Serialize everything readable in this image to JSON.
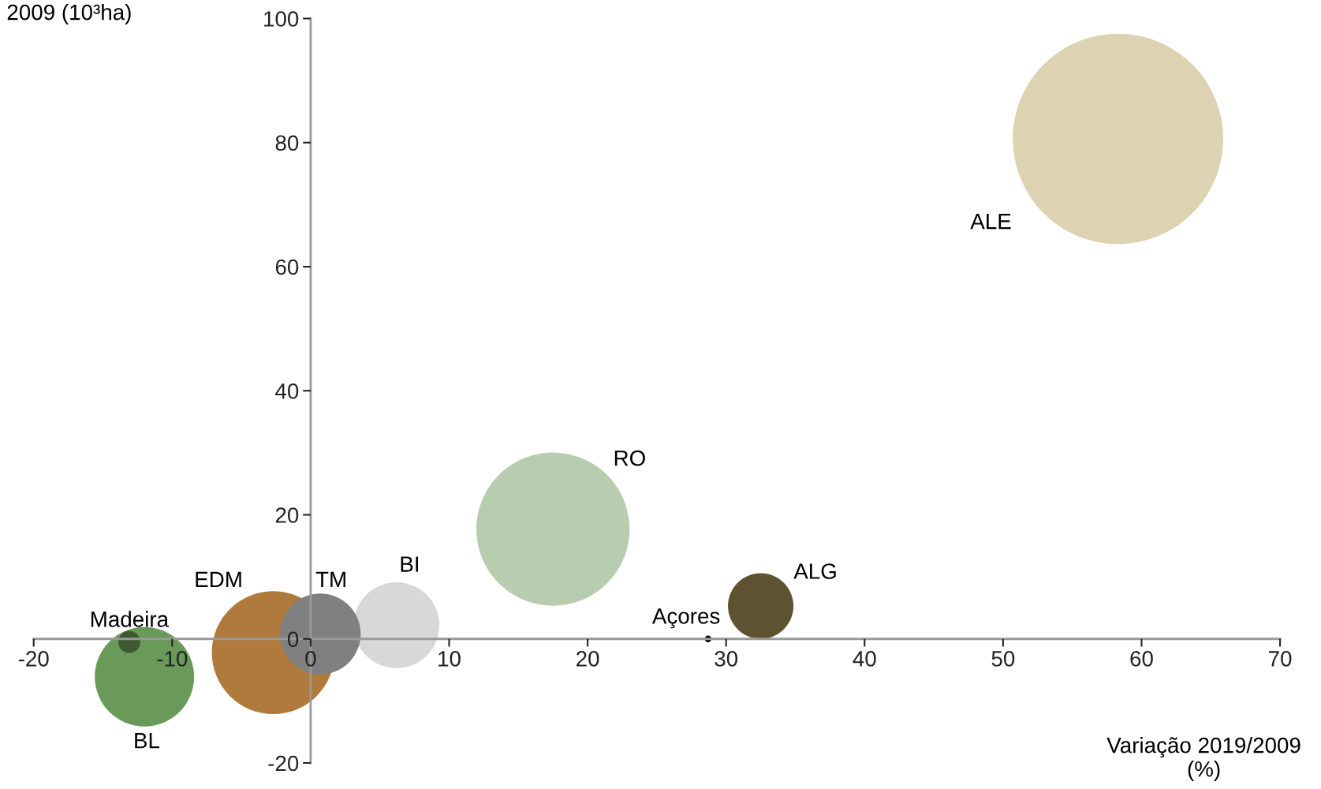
{
  "chart_data": {
    "type": "bubble",
    "xlabel": "Variação 2019/2009\n(%)",
    "ylabel": "2009 (10³ha)",
    "xlim": [
      -20,
      70
    ],
    "xticks": [
      -20,
      -10,
      0,
      10,
      20,
      30,
      40,
      50,
      60,
      70
    ],
    "ylim": [
      -20,
      100
    ],
    "yticks": [
      -20,
      0,
      20,
      40,
      60,
      80,
      100
    ],
    "grid": false,
    "legend": false,
    "series": [
      {
        "name": "ALE",
        "color": "#ddd2b2",
        "x": [
          58.3
        ],
        "values": [
          80.6
        ],
        "sizes": [
          1
        ]
      },
      {
        "name": "RO",
        "color": "#b8cdb0",
        "x": [
          17.5
        ],
        "values": [
          17.7
        ],
        "sizes": [
          0.53
        ]
      },
      {
        "name": "ALG",
        "color": "#5e5230",
        "x": [
          32.5
        ],
        "values": [
          5.3
        ],
        "sizes": [
          0.097
        ]
      },
      {
        "name": "Açores",
        "color": "#000000",
        "x": [
          28.7
        ],
        "values": [
          0
        ],
        "sizes": [
          0.001
        ]
      },
      {
        "name": "BI",
        "color": "#d8d8d8",
        "x": [
          6.2
        ],
        "values": [
          2.2
        ],
        "sizes": [
          0.166
        ]
      },
      {
        "name": "TM",
        "color": "#808080",
        "x": [
          0.7
        ],
        "values": [
          0.8
        ],
        "sizes": [
          0.147
        ]
      },
      {
        "name": "EDM",
        "color": "#b07a3c",
        "x": [
          -2.7
        ],
        "values": [
          -2.2
        ],
        "sizes": [
          0.341
        ]
      },
      {
        "name": "BL",
        "color": "#6a9a5a",
        "x": [
          -12.0
        ],
        "values": [
          -6.1
        ],
        "sizes": [
          0.223
        ]
      },
      {
        "name": "Madeira",
        "color": "#3d5a30",
        "x": [
          -13.1
        ],
        "values": [
          -0.5
        ],
        "sizes": [
          0.011
        ]
      }
    ]
  }
}
